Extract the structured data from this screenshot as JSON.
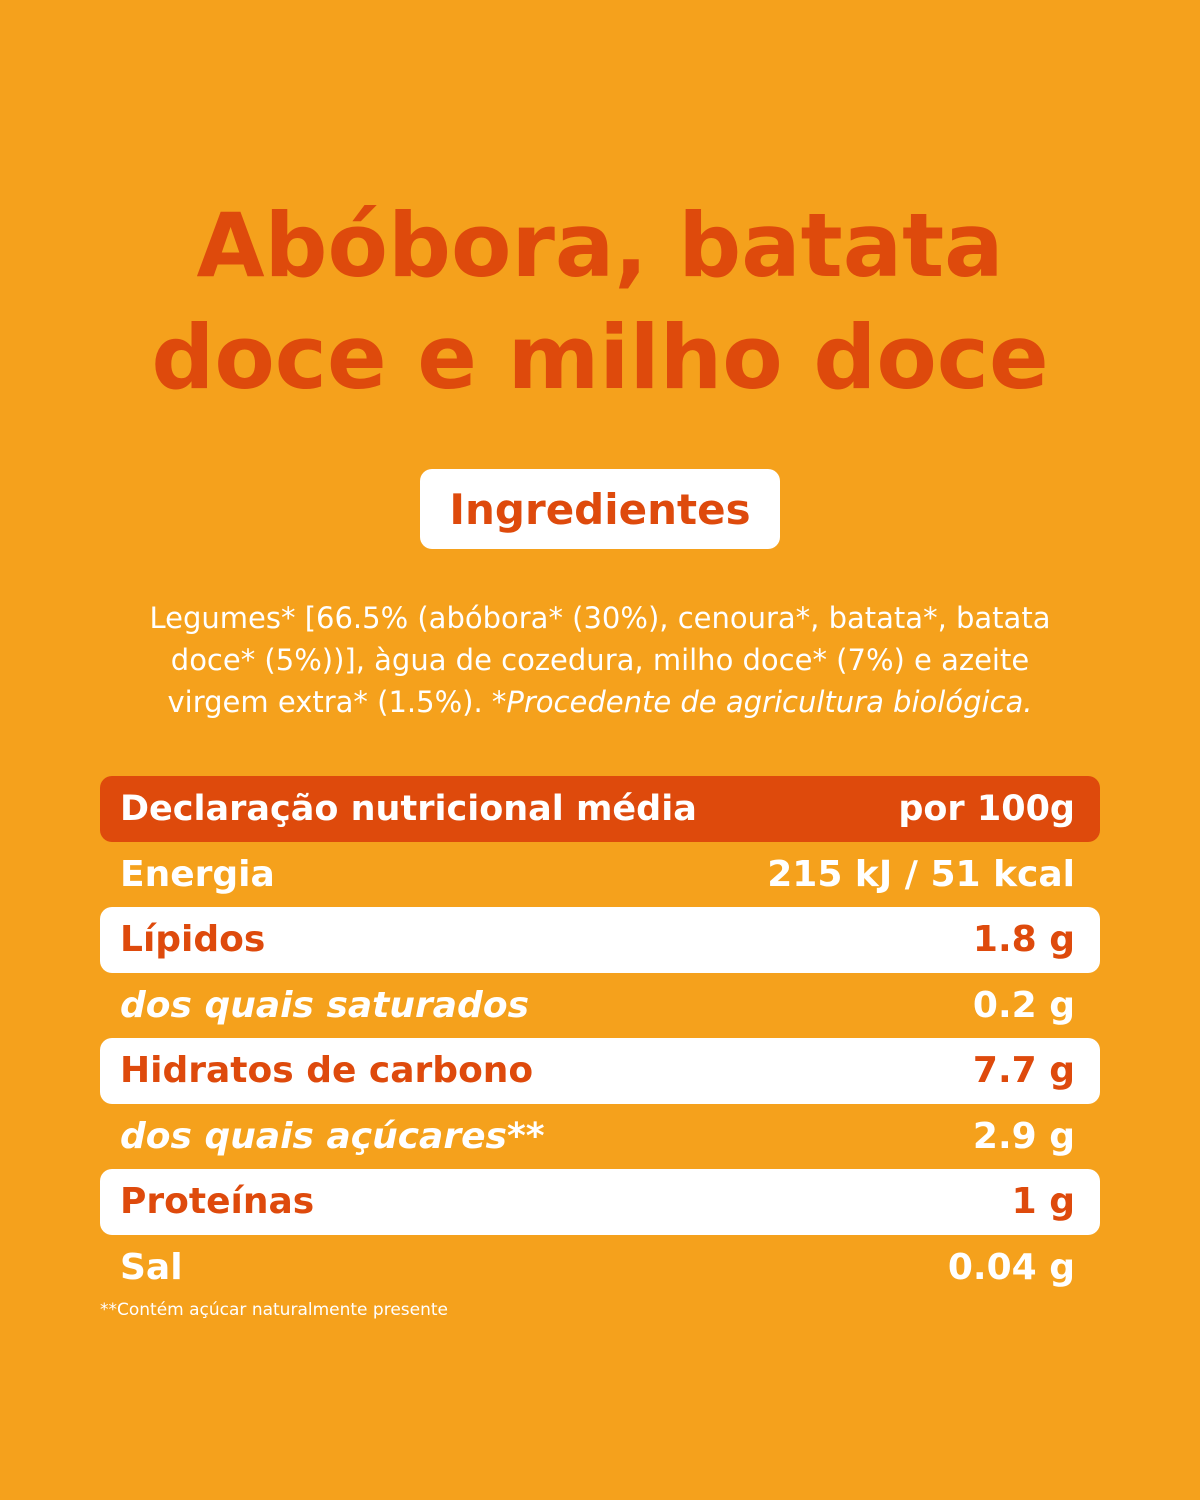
{
  "title": {
    "line1": "Abóbora, batata",
    "line2": "doce e milho doce"
  },
  "ingredients_badge": "Ingredientes",
  "ingredients": {
    "line1": "Legumes* [66.5% (abóbora* (30%), cenoura*, batata*, batata",
    "line2": "doce* (5%))], àgua de cozedura, milho doce* (7%) e azeite",
    "line3_plain": "virgem extra* (1.5%).",
    "line3_italic": "*Procedente de agricultura biológica."
  },
  "nutrition": {
    "header_label": "Declaração nutricional média",
    "header_value": "por 100g",
    "rows": [
      {
        "label": "Energia",
        "value": "215 kJ / 51 kcal"
      },
      {
        "label": "Lípidos",
        "value": "1.8 g"
      },
      {
        "label": "dos quais saturados",
        "value": "0.2 g"
      },
      {
        "label": "Hidratos de carbono",
        "value": "7.7 g"
      },
      {
        "label": "dos quais açúcares**",
        "value": "2.9 g"
      },
      {
        "label": "Proteínas",
        "value": "1 g"
      },
      {
        "label": "Sal",
        "value": "0.04 g"
      }
    ]
  },
  "footnote": "**Contém açúcar naturalmente presente",
  "colors": {
    "background": "#f5a11c",
    "accent": "#de4a0c",
    "white": "#ffffff"
  }
}
